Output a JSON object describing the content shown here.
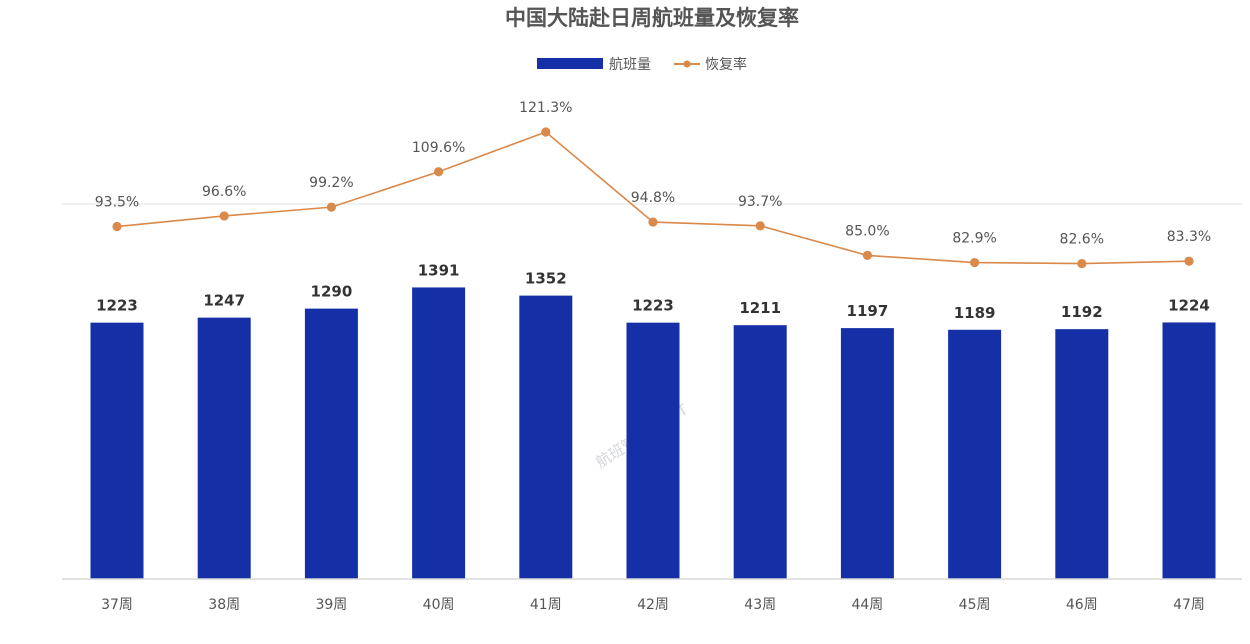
{
  "watermark": "航班管家 DAST",
  "colors": {
    "bar": "#1530a6",
    "line": "#d9894a",
    "axis": "#d9d9d9",
    "gridline": "#e3e3e3"
  },
  "chart_data": {
    "type": "bar",
    "title": "中国大陆赴日周航班量及恢复率",
    "categories": [
      "37周",
      "38周",
      "39周",
      "40周",
      "41周",
      "42周",
      "43周",
      "44周",
      "45周",
      "46周",
      "47周"
    ],
    "series": [
      {
        "name": "航班量",
        "kind": "bar",
        "values": [
          1223,
          1247,
          1290,
          1391,
          1352,
          1223,
          1211,
          1197,
          1189,
          1192,
          1224
        ]
      },
      {
        "name": "恢复率",
        "kind": "line",
        "values": [
          93.5,
          96.6,
          99.2,
          109.6,
          121.3,
          94.8,
          93.7,
          85.0,
          82.9,
          82.6,
          83.3
        ],
        "labels": [
          "93.5%",
          "96.6%",
          "99.2%",
          "109.6%",
          "121.3%",
          "94.8%",
          "93.7%",
          "85.0%",
          "82.9%",
          "82.6%",
          "83.3%"
        ]
      }
    ],
    "legend": "top-center",
    "xlabel": "",
    "ylabel": ""
  }
}
